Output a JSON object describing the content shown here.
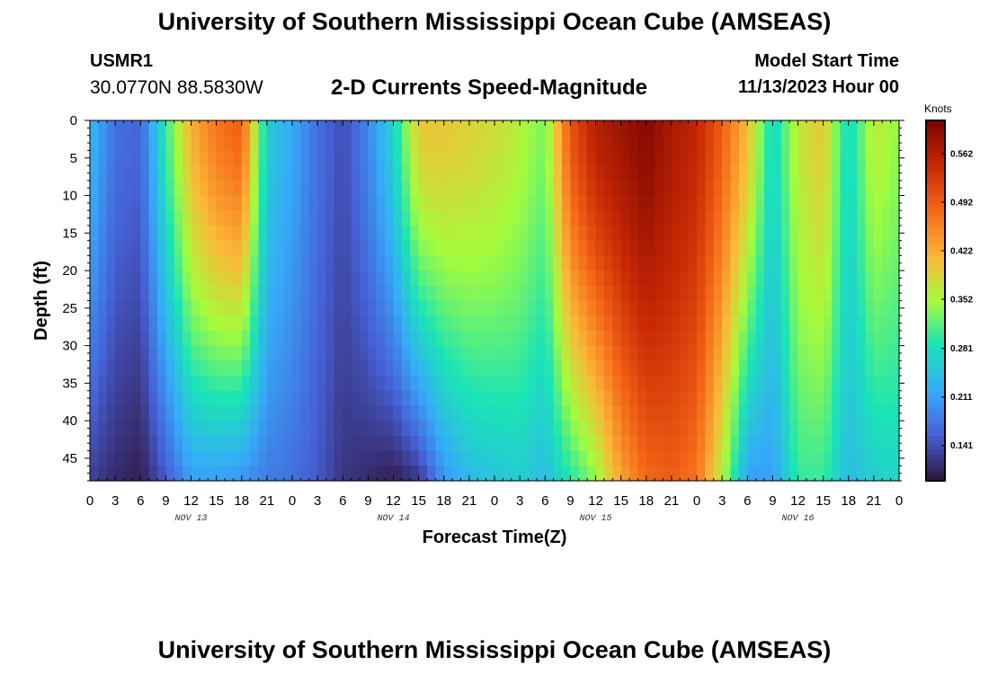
{
  "header": {
    "title": "University of Southern Mississippi Ocean Cube (AMSEAS)",
    "station": "USMR1",
    "coordinates": "30.0770N  88.5830W",
    "plot_title": "2-D Currents Speed-Magnitude",
    "model_start_label": "Model Start Time",
    "model_start_value": "11/13/2023 Hour 00"
  },
  "footer": {
    "title": "University of Southern Mississippi Ocean Cube (AMSEAS)"
  },
  "chart_data": {
    "type": "heatmap",
    "title": "2-D Currents Speed-Magnitude",
    "xlabel": "Forecast Time(Z)",
    "ylabel": "Depth (ft)",
    "x_range_hours": [
      0,
      96
    ],
    "x_tick_step_hours": 3,
    "x_tick_labels": [
      "0",
      "3",
      "6",
      "9",
      "12",
      "15",
      "18",
      "21",
      "0",
      "3",
      "6",
      "9",
      "12",
      "15",
      "18",
      "21",
      "0",
      "3",
      "6",
      "9",
      "12",
      "15",
      "18",
      "21",
      "0",
      "3",
      "6",
      "9",
      "12",
      "15",
      "18",
      "21",
      "0"
    ],
    "day_labels": [
      {
        "label": "NOV 13",
        "hour": 12
      },
      {
        "label": "NOV 14",
        "hour": 36
      },
      {
        "label": "NOV 15",
        "hour": 60
      },
      {
        "label": "NOV 16",
        "hour": 84
      }
    ],
    "y_range_ft": [
      0,
      48
    ],
    "y_ticks": [
      0,
      5,
      10,
      15,
      20,
      25,
      30,
      35,
      40,
      45
    ],
    "colorbar": {
      "unit": "Knots",
      "min": 0.09,
      "max": 0.61,
      "tick_values": [
        0.141,
        0.211,
        0.281,
        0.352,
        0.422,
        0.492,
        0.562
      ],
      "tick_labels": [
        "0.141",
        "0.211",
        "0.281",
        "0.352",
        "0.422",
        "0.492",
        "0.562"
      ]
    },
    "surface_speed_profile": {
      "description": "approximate speed (knots) by forecast hour near surface / near bottom",
      "hours": [
        0,
        3,
        6,
        9,
        12,
        15,
        18,
        21,
        24,
        27,
        30,
        33,
        36,
        39,
        42,
        45,
        48,
        51,
        54,
        57,
        60,
        63,
        66,
        69,
        72,
        75,
        78,
        81,
        84,
        87,
        90,
        93,
        96
      ],
      "surface": [
        0.24,
        0.17,
        0.16,
        0.3,
        0.42,
        0.47,
        0.49,
        0.26,
        0.22,
        0.17,
        0.14,
        0.19,
        0.27,
        0.4,
        0.4,
        0.39,
        0.38,
        0.36,
        0.33,
        0.5,
        0.56,
        0.58,
        0.6,
        0.57,
        0.55,
        0.49,
        0.41,
        0.27,
        0.37,
        0.4,
        0.27,
        0.37,
        0.34
      ],
      "bottom": [
        0.13,
        0.11,
        0.1,
        0.15,
        0.21,
        0.21,
        0.2,
        0.18,
        0.17,
        0.15,
        0.12,
        0.11,
        0.1,
        0.12,
        0.2,
        0.24,
        0.25,
        0.26,
        0.24,
        0.29,
        0.34,
        0.43,
        0.48,
        0.49,
        0.47,
        0.36,
        0.21,
        0.21,
        0.3,
        0.3,
        0.24,
        0.26,
        0.27
      ]
    }
  }
}
